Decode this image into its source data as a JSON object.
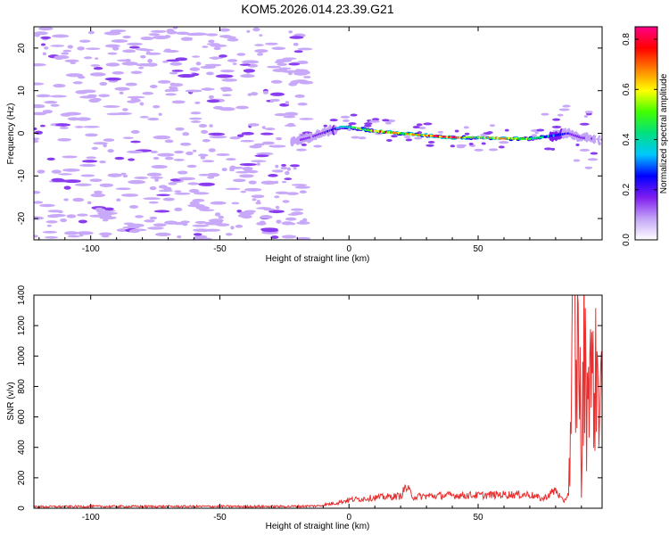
{
  "title": "KOM5.2026.014.23.39.G21",
  "chart_data": [
    {
      "type": "heatmap",
      "name": "spectrogram",
      "xlabel": "Height of straight line (km)",
      "ylabel": "Frequency (Hz)",
      "xlim": [
        -122,
        98
      ],
      "ylim": [
        -25,
        25
      ],
      "x_ticks": [
        -100,
        -50,
        0,
        50
      ],
      "y_ticks": [
        -20,
        -10,
        0,
        10,
        20
      ],
      "x_tick_labels": [
        "-100",
        "-50",
        "0",
        "50"
      ],
      "y_tick_labels": [
        "-20",
        "-10",
        "0",
        "10",
        "20"
      ],
      "signal_trace": {
        "x": [
          -22,
          -15,
          -8,
          -3,
          0,
          5,
          10,
          20,
          30,
          40,
          50,
          60,
          70,
          80,
          85,
          90,
          98
        ],
        "freq": [
          -2,
          -1,
          0.5,
          1.5,
          1.5,
          1,
          0.5,
          0,
          -0.5,
          -1,
          -1,
          -1.2,
          -1.3,
          -0.5,
          0,
          -1,
          -1.5
        ],
        "amplitude": [
          0.1,
          0.15,
          0.2,
          0.3,
          0.4,
          0.55,
          0.7,
          0.55,
          0.6,
          0.75,
          0.5,
          0.6,
          0.45,
          0.3,
          0.2,
          0.15,
          0.1
        ]
      },
      "background_noise_x_range": [
        -122,
        -22
      ],
      "background_noise_level": 0.05
    },
    {
      "type": "colorbar",
      "name": "amplitude-colorbar",
      "label": "Normalized spectral amplitude",
      "range": [
        0,
        0.85
      ],
      "ticks": [
        0.0,
        0.2,
        0.4,
        0.6,
        0.8
      ],
      "tick_labels": [
        "0.0",
        "0.2",
        "0.4",
        "0.6",
        "0.8"
      ],
      "colors": [
        "#ffffff",
        "#c3a3f7",
        "#7f1cf0",
        "#0000ff",
        "#00c8ff",
        "#00e080",
        "#40ff00",
        "#ffff00",
        "#ff8000",
        "#ff0000",
        "#ff0088"
      ]
    },
    {
      "type": "line",
      "name": "snr",
      "xlabel": "Height of straight line (km)",
      "ylabel": "SNR (v/v)",
      "xlim": [
        -122,
        98
      ],
      "ylim": [
        0,
        1400
      ],
      "x_ticks": [
        -100,
        -50,
        0,
        50
      ],
      "y_ticks": [
        0,
        200,
        400,
        600,
        800,
        1000,
        1200,
        1400
      ],
      "x_tick_labels": [
        "-100",
        "-50",
        "0",
        "50"
      ],
      "y_tick_labels": [
        "0",
        "200",
        "400",
        "600",
        "800",
        "1000",
        "1200",
        "1400"
      ],
      "line_color": "#e83030",
      "series": {
        "x": [
          -122,
          -100,
          -75,
          -50,
          -25,
          -12,
          -5,
          0,
          10,
          20,
          22,
          25,
          30,
          40,
          50,
          60,
          70,
          75,
          80,
          83,
          85,
          86,
          87,
          88,
          89,
          90,
          91,
          92,
          93,
          94,
          96,
          98
        ],
        "y": [
          10,
          12,
          12,
          12,
          12,
          15,
          35,
          55,
          70,
          80,
          140,
          75,
          80,
          85,
          85,
          90,
          90,
          60,
          120,
          40,
          100,
          600,
          1400,
          700,
          1350,
          100,
          1150,
          600,
          1100,
          800,
          850,
          800
        ]
      }
    }
  ]
}
